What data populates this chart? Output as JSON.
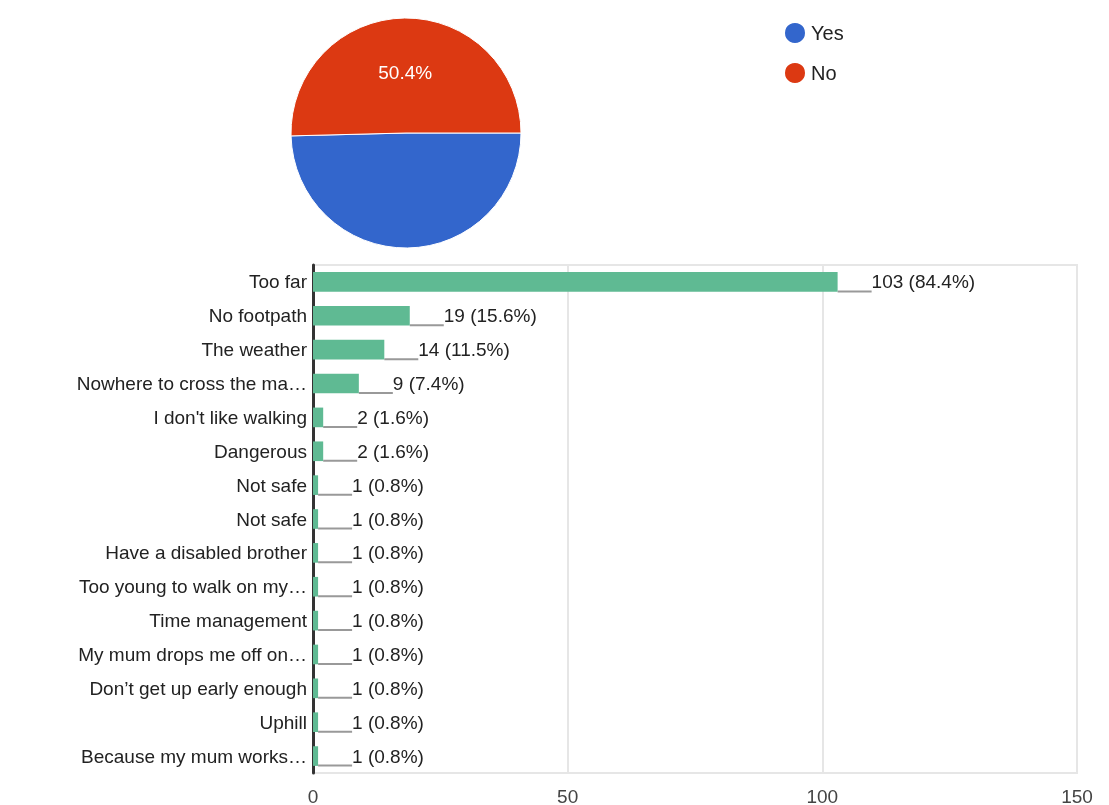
{
  "chart_data": [
    {
      "type": "pie",
      "categories": [
        "Yes",
        "No"
      ],
      "values": [
        49.6,
        50.4
      ],
      "colors": [
        "#3366cc",
        "#dc3912"
      ],
      "value_labels": [
        null,
        "50.4%"
      ],
      "legend": "top right"
    },
    {
      "type": "bar",
      "orientation": "horizontal",
      "categories": [
        "Too far",
        "No footpath",
        "The weather",
        "Nowhere to cross the ma…",
        "I don't like walking",
        "Dangerous",
        "Not safe",
        "Not safe",
        "Have a disabled brother",
        "Too young to walk on my…",
        "Time management",
        "My mum drops me off on…",
        "Don’t get up early enough",
        "Uphill",
        "Because my mum works…"
      ],
      "values": [
        103,
        19,
        14,
        9,
        2,
        2,
        1,
        1,
        1,
        1,
        1,
        1,
        1,
        1,
        1
      ],
      "value_labels": [
        "103 (84.4%)",
        "19 (15.6%)",
        "14 (11.5%)",
        "9 (7.4%)",
        "2 (1.6%)",
        "2 (1.6%)",
        "1 (0.8%)",
        "1 (0.8%)",
        "1 (0.8%)",
        "1 (0.8%)",
        "1 (0.8%)",
        "1 (0.8%)",
        "1 (0.8%)",
        "1 (0.8%)",
        "1 (0.8%)"
      ],
      "color": "#5fba93",
      "xlim": [
        0,
        150
      ],
      "xticks": [
        0,
        50,
        100,
        150
      ],
      "grid": "x"
    }
  ]
}
